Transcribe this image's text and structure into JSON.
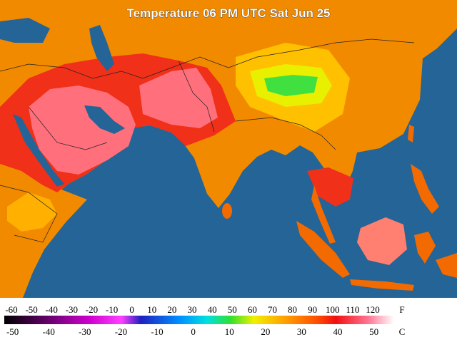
{
  "title": "Temperature 06 PM UTC Sat Jun 25",
  "legend": {
    "fahrenheit": {
      "unit": "F",
      "labels": [
        -60,
        -50,
        -40,
        -30,
        -20,
        -10,
        0,
        10,
        20,
        30,
        40,
        50,
        60,
        70,
        80,
        90,
        100,
        110,
        120
      ]
    },
    "celsius": {
      "unit": "C",
      "labels": [
        -50,
        -40,
        -30,
        -20,
        -10,
        0,
        10,
        20,
        30,
        40,
        50
      ]
    }
  }
}
